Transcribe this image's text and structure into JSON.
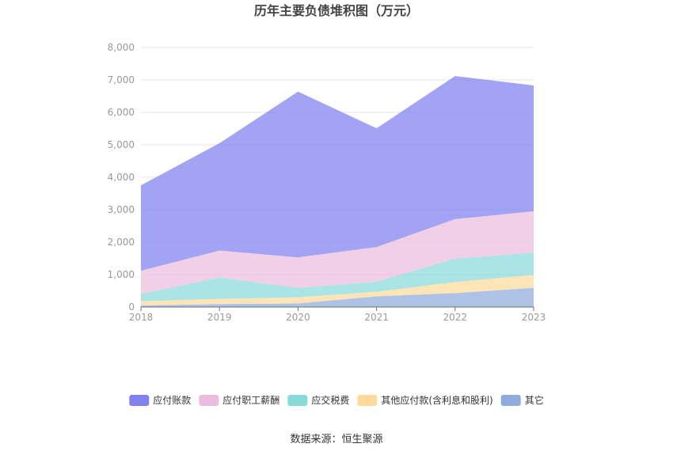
{
  "chart_data": {
    "type": "area",
    "stacked": true,
    "title": "历年主要负债堆积图（万元）",
    "categories": [
      "2018",
      "2019",
      "2020",
      "2021",
      "2022",
      "2023"
    ],
    "ylim": [
      0,
      8000
    ],
    "yticks": [
      "0",
      "1,000",
      "2,000",
      "3,000",
      "4,000",
      "5,000",
      "6,000",
      "7,000",
      "8,000"
    ],
    "ytick_values": [
      0,
      1000,
      2000,
      3000,
      4000,
      5000,
      6000,
      7000,
      8000
    ],
    "grid": true,
    "legend_position": "bottom",
    "series": [
      {
        "name": "其它",
        "color": "#8faadc",
        "values": [
          50,
          90,
          110,
          330,
          430,
          590
        ]
      },
      {
        "name": "其他应付款(含利息和股利)",
        "color": "#ffd99b",
        "values": [
          130,
          160,
          190,
          140,
          340,
          400
        ]
      },
      {
        "name": "应交税费",
        "color": "#8ad9d9",
        "values": [
          220,
          660,
          290,
          310,
          720,
          690
        ]
      },
      {
        "name": "应付职工薪酬",
        "color": "#ebbcdd",
        "values": [
          720,
          830,
          940,
          1070,
          1220,
          1270
        ]
      },
      {
        "name": "应付账款",
        "color": "#8080f0",
        "values": [
          2630,
          3310,
          5110,
          3660,
          4410,
          3880
        ]
      }
    ],
    "legend_order": [
      "应付账款",
      "应付职工薪酬",
      "应交税费",
      "其他应付款(含利息和股利)",
      "其它"
    ]
  },
  "footer": {
    "source": "数据来源：恒生聚源"
  }
}
